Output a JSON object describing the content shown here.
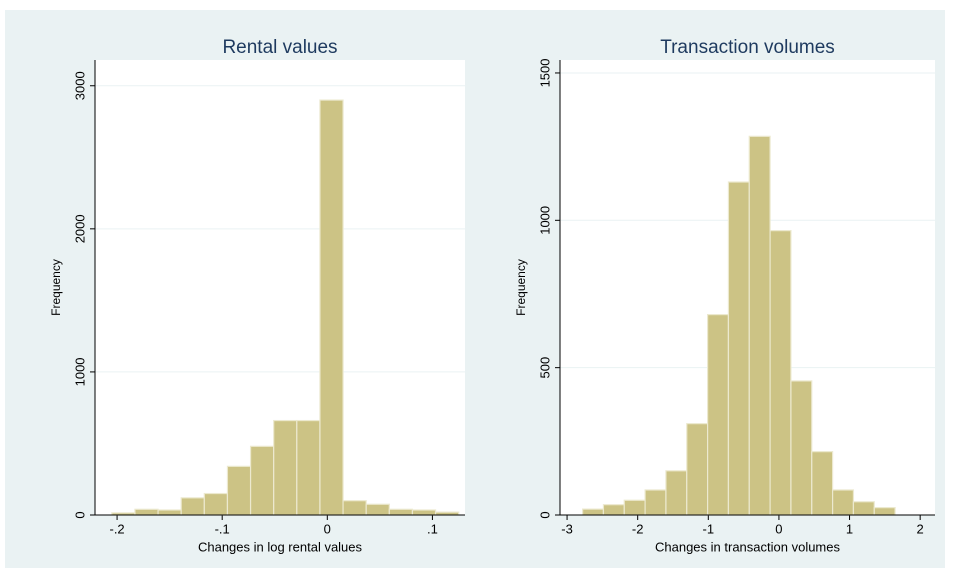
{
  "chart_data": [
    {
      "type": "histogram",
      "title": "Rental values",
      "xlabel": "Changes in log rental values",
      "ylabel": "Frequency",
      "bins": [
        -0.205,
        -0.183,
        -0.161,
        -0.139,
        -0.117,
        -0.095,
        -0.073,
        -0.051,
        -0.029,
        -0.007,
        0.015,
        0.037,
        0.059,
        0.081,
        0.103,
        0.125
      ],
      "counts": [
        15,
        40,
        35,
        120,
        150,
        340,
        480,
        660,
        660,
        2900,
        100,
        75,
        40,
        35,
        20
      ],
      "color": "#ccc385",
      "xlim": [
        -0.221,
        0.131
      ],
      "ylim": [
        0,
        3180
      ],
      "xticks": [
        {
          "value": -0.2,
          "label": "-.2"
        },
        {
          "value": -0.1,
          "label": "-.1"
        },
        0,
        {
          "value": 0.1,
          "label": ".1"
        }
      ],
      "yticks": [
        0,
        1000,
        2000,
        3000
      ],
      "grid": true
    },
    {
      "type": "histogram",
      "title": "Transaction volumes",
      "xlabel": "Changes in transaction volumes",
      "ylabel": "Frequency",
      "bins": [
        -2.78,
        -2.485,
        -2.19,
        -1.895,
        -1.6,
        -1.305,
        -1.01,
        -0.715,
        -0.42,
        -0.125,
        0.17,
        0.465,
        0.76,
        1.055,
        1.35,
        1.645
      ],
      "counts": [
        20,
        35,
        50,
        85,
        150,
        310,
        680,
        1130,
        1285,
        965,
        455,
        215,
        85,
        45,
        25
      ],
      "color": "#ccc385",
      "xlim": [
        -3.1,
        2.21
      ],
      "ylim": [
        0,
        1544
      ],
      "xticks": [
        -3,
        -2,
        -1,
        0,
        1,
        2
      ],
      "yticks": [
        0,
        500,
        1000,
        1500
      ],
      "grid": true
    }
  ]
}
